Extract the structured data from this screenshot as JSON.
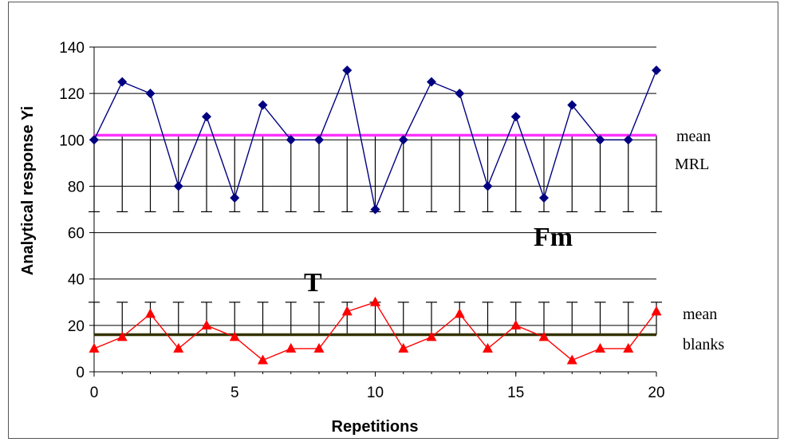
{
  "chart_data": {
    "type": "line",
    "xlabel": "Repetitions",
    "ylabel": "Analytical response Yi",
    "xlim": [
      0,
      20
    ],
    "ylim": [
      0,
      140
    ],
    "x_ticks": [
      0,
      5,
      10,
      15,
      20
    ],
    "y_ticks": [
      0,
      20,
      40,
      60,
      80,
      100,
      120,
      140
    ],
    "grid": "horizontal",
    "x": [
      0,
      1,
      2,
      3,
      4,
      5,
      6,
      7,
      8,
      9,
      10,
      11,
      12,
      13,
      14,
      15,
      16,
      17,
      18,
      19,
      20
    ],
    "series": [
      {
        "key": "mrl",
        "color": "#000080",
        "marker": "diamond",
        "values": [
          100,
          125,
          120,
          80,
          110,
          75,
          115,
          100,
          100,
          130,
          70,
          100,
          125,
          120,
          80,
          110,
          75,
          115,
          100,
          100,
          130
        ]
      },
      {
        "key": "blanks",
        "color": "#ff0000",
        "marker": "triangle",
        "values": [
          10,
          15,
          25,
          10,
          20,
          15,
          5,
          10,
          10,
          26,
          30,
          10,
          15,
          25,
          10,
          20,
          15,
          5,
          10,
          10,
          26
        ]
      }
    ],
    "reference_lines": [
      {
        "key": "mean_mrl",
        "y": 102,
        "color": "#ff33ff"
      },
      {
        "key": "mean_blanks",
        "y": 16,
        "color": "#333300"
      }
    ],
    "error_bars": [
      {
        "key": "fm_range",
        "center": 102,
        "low": 69,
        "color": "#000000"
      },
      {
        "key": "t_range",
        "center": 16,
        "high": 30,
        "color": "#000000"
      }
    ],
    "annotations": {
      "mean_mrl": [
        "mean",
        "MRL"
      ],
      "mean_blanks": [
        "mean",
        "blanks"
      ],
      "fm": "Fm",
      "t": "T"
    }
  }
}
